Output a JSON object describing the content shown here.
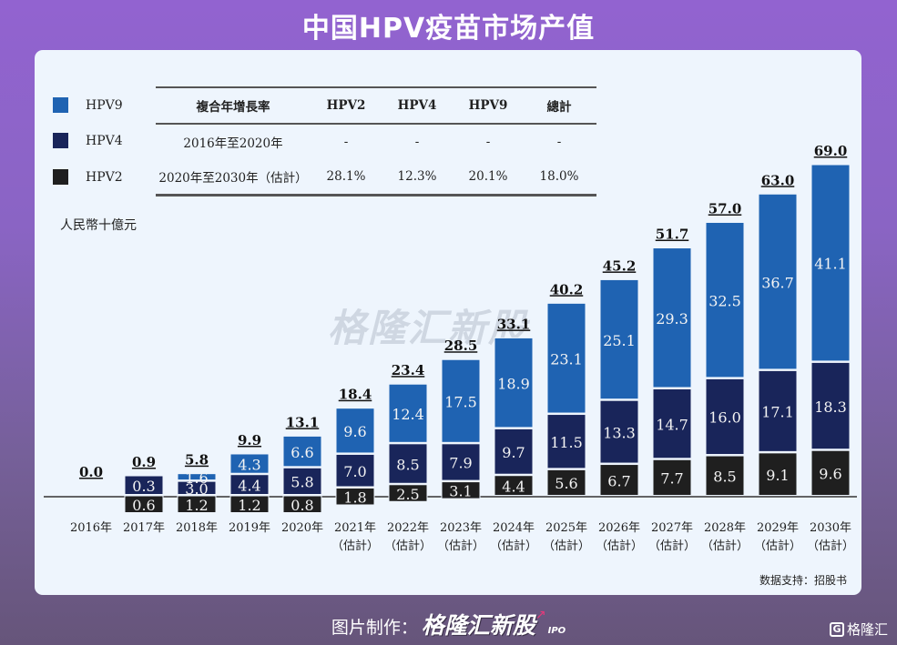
{
  "title": "中国HPV疫苗市场产值",
  "legend": [
    {
      "label": "HPV9",
      "color": "#1f63b2"
    },
    {
      "label": "HPV4",
      "color": "#19255a"
    },
    {
      "label": "HPV2",
      "color": "#1f1f1f"
    }
  ],
  "cagr_table": {
    "headers": [
      "複合年增長率",
      "HPV2",
      "HPV4",
      "HPV9",
      "總計"
    ],
    "rows": [
      [
        "2016年至2020年",
        "-",
        "-",
        "-",
        "-"
      ],
      [
        "2020年至2030年（估計）",
        "28.1%",
        "12.3%",
        "20.1%",
        "18.0%"
      ]
    ]
  },
  "unit_label": "人民幣十億元",
  "watermark": "格隆汇新股",
  "source": "数据支持：招股书",
  "footer": {
    "prefix": "图片制作：",
    "brand": "格隆汇新股",
    "ipo": "IPO"
  },
  "corner_logo": {
    "icon": "G",
    "text": "格隆汇"
  },
  "chart_data": {
    "type": "bar",
    "stacked": true,
    "title": "中国HPV疫苗市场产值",
    "ylabel": "人民幣十億元",
    "xlabel": "",
    "categories": [
      "2016年",
      "2017年",
      "2018年",
      "2019年",
      "2020年",
      "2021年",
      "2022年",
      "2023年",
      "2024年",
      "2025年",
      "2026年",
      "2027年",
      "2028年",
      "2029年",
      "2030年"
    ],
    "category_sublabels": [
      "",
      "",
      "",
      "",
      "",
      "（估計）",
      "（估計）",
      "（估計）",
      "（估計）",
      "（估計）",
      "（估計）",
      "（估計）",
      "（估計）",
      "（估計）",
      "（估計）"
    ],
    "series": [
      {
        "name": "HPV2",
        "color": "#1f1f1f",
        "values": [
          0.0,
          0.6,
          1.2,
          1.2,
          0.8,
          1.8,
          2.5,
          3.1,
          4.4,
          5.6,
          6.7,
          7.7,
          8.5,
          9.1,
          9.6
        ]
      },
      {
        "name": "HPV4",
        "color": "#19255a",
        "values": [
          0.0,
          0.3,
          3.0,
          4.4,
          5.8,
          7.0,
          8.5,
          7.9,
          9.7,
          11.5,
          13.3,
          14.7,
          16.0,
          17.1,
          18.3
        ]
      },
      {
        "name": "HPV9",
        "color": "#1f63b2",
        "values": [
          0.0,
          0.0,
          1.6,
          4.3,
          6.6,
          9.6,
          12.4,
          17.5,
          18.9,
          23.1,
          25.1,
          29.3,
          32.5,
          36.7,
          41.1
        ]
      }
    ],
    "totals": [
      "0.0",
      "0.9",
      "5.8",
      "9.9",
      "13.1",
      "18.4",
      "23.4",
      "28.5",
      "33.1",
      "40.2",
      "45.2",
      "51.7",
      "57.0",
      "63.0",
      "69.0"
    ],
    "segment_labels": {
      "HPV2": [
        "",
        "0.6",
        "1.2",
        "1.2",
        "0.8",
        "1.8",
        "2.5",
        "3.1",
        "4.4",
        "5.6",
        "6.7",
        "7.7",
        "8.5",
        "9.1",
        "9.6"
      ],
      "HPV4": [
        "",
        "0.3",
        "3.0",
        "4.4",
        "5.8",
        "7.0",
        "8.5",
        "7.9",
        "9.7",
        "11.5",
        "13.3",
        "14.7",
        "16.0",
        "17.1",
        "18.3"
      ],
      "HPV9": [
        "",
        "",
        "1.6",
        "4.3",
        "6.6",
        "9.6",
        "12.4",
        "17.5",
        "18.9",
        "23.1",
        "25.1",
        "29.3",
        "32.5",
        "36.7",
        "41.1"
      ]
    },
    "ylim": [
      0,
      69
    ],
    "grid": false,
    "legend_position": "top-left"
  }
}
